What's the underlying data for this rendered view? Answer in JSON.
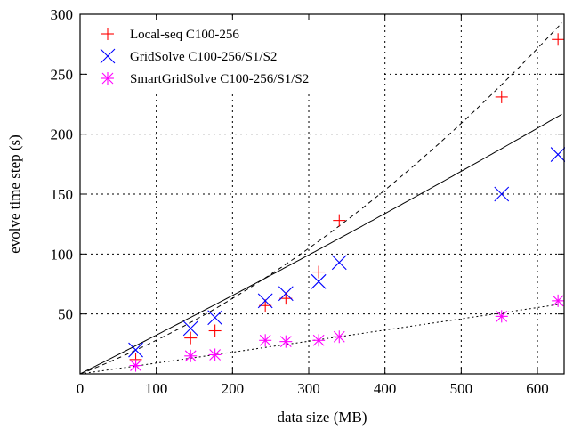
{
  "chart_data": {
    "type": "scatter",
    "title": "",
    "xlabel": "data size (MB)",
    "ylabel": "evolve time step (s)",
    "xlim": [
      0,
      635
    ],
    "ylim": [
      0,
      300
    ],
    "xticks": [
      0,
      100,
      200,
      300,
      400,
      500,
      600
    ],
    "yticks": [
      50,
      100,
      150,
      200,
      250,
      300
    ],
    "grid": true,
    "legend_position": "top-left",
    "series": [
      {
        "name": "Local-seq C100-256",
        "marker": "plus",
        "color": "#ff0000",
        "points": [
          [
            73,
            12
          ],
          [
            145,
            30
          ],
          [
            177,
            36
          ],
          [
            243,
            57
          ],
          [
            270,
            63
          ],
          [
            313,
            85
          ],
          [
            340,
            128
          ],
          [
            553,
            231
          ],
          [
            627,
            279
          ]
        ],
        "fit": {
          "style": "dashed",
          "form": "quadratic",
          "coefficients": [
            0.0,
            0.246,
            0.000344
          ]
        }
      },
      {
        "name": "GridSolve C100-256/S1/S2",
        "marker": "cross",
        "color": "#0000ff",
        "points": [
          [
            73,
            20
          ],
          [
            145,
            38
          ],
          [
            177,
            47
          ],
          [
            243,
            61
          ],
          [
            270,
            67
          ],
          [
            313,
            77
          ],
          [
            340,
            93
          ],
          [
            553,
            150
          ],
          [
            627,
            183
          ]
        ],
        "fit": {
          "style": "solid",
          "form": "quadratic",
          "coefficients": [
            0.0,
            0.32,
            3.6e-05
          ]
        }
      },
      {
        "name": "SmartGridSolve C100-256/S1/S2",
        "marker": "star",
        "color": "#ff00ff",
        "points": [
          [
            73,
            7
          ],
          [
            145,
            15
          ],
          [
            177,
            16
          ],
          [
            243,
            28
          ],
          [
            270,
            27
          ],
          [
            313,
            28
          ],
          [
            340,
            31
          ],
          [
            553,
            48
          ],
          [
            627,
            61
          ]
        ],
        "fit": {
          "style": "dotted",
          "form": "quadratic",
          "coefficients": [
            0.0,
            0.09,
            3.7e-06
          ]
        }
      }
    ]
  }
}
